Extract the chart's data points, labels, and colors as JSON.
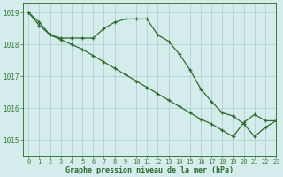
{
  "line1_x": [
    0,
    1,
    2,
    3,
    4,
    5,
    6,
    7,
    8,
    9,
    10,
    11,
    12,
    13,
    14,
    15,
    16,
    17,
    18,
    19,
    20,
    21,
    22,
    23
  ],
  "line1_y": [
    1019.0,
    1018.7,
    1018.3,
    1018.2,
    1018.2,
    1018.2,
    1018.2,
    1018.5,
    1018.7,
    1018.8,
    1018.8,
    1018.8,
    1018.3,
    1018.1,
    1017.7,
    1017.2,
    1016.6,
    1016.2,
    1015.85,
    1015.75,
    1015.5,
    1015.1,
    1015.4,
    1015.6
  ],
  "line2_x": [
    0,
    1,
    2,
    3,
    4,
    5,
    6,
    7,
    8,
    9,
    10,
    11,
    12,
    13,
    14,
    15,
    16,
    17,
    18,
    19,
    20,
    21,
    22,
    23
  ],
  "line2_y": [
    1019.0,
    1018.6,
    1018.3,
    1018.15,
    1018.0,
    1017.85,
    1017.65,
    1017.45,
    1017.25,
    1017.05,
    1016.85,
    1016.65,
    1016.45,
    1016.25,
    1016.05,
    1015.85,
    1015.65,
    1015.5,
    1015.3,
    1015.1,
    1015.55,
    1015.8,
    1015.6,
    1015.6
  ],
  "line_color": "#2d6a2d",
  "bg_color": "#d4edec",
  "grid_color": "#a8cccc",
  "axis_color": "#3a7a3a",
  "xlabel": "Graphe pression niveau de la mer (hPa)",
  "xlim": [
    -0.5,
    23
  ],
  "ylim": [
    1014.5,
    1019.3
  ],
  "yticks": [
    1015,
    1016,
    1017,
    1018,
    1019
  ],
  "xticks": [
    0,
    1,
    2,
    3,
    4,
    5,
    6,
    7,
    8,
    9,
    10,
    11,
    12,
    13,
    14,
    15,
    16,
    17,
    18,
    19,
    20,
    21,
    22,
    23
  ]
}
